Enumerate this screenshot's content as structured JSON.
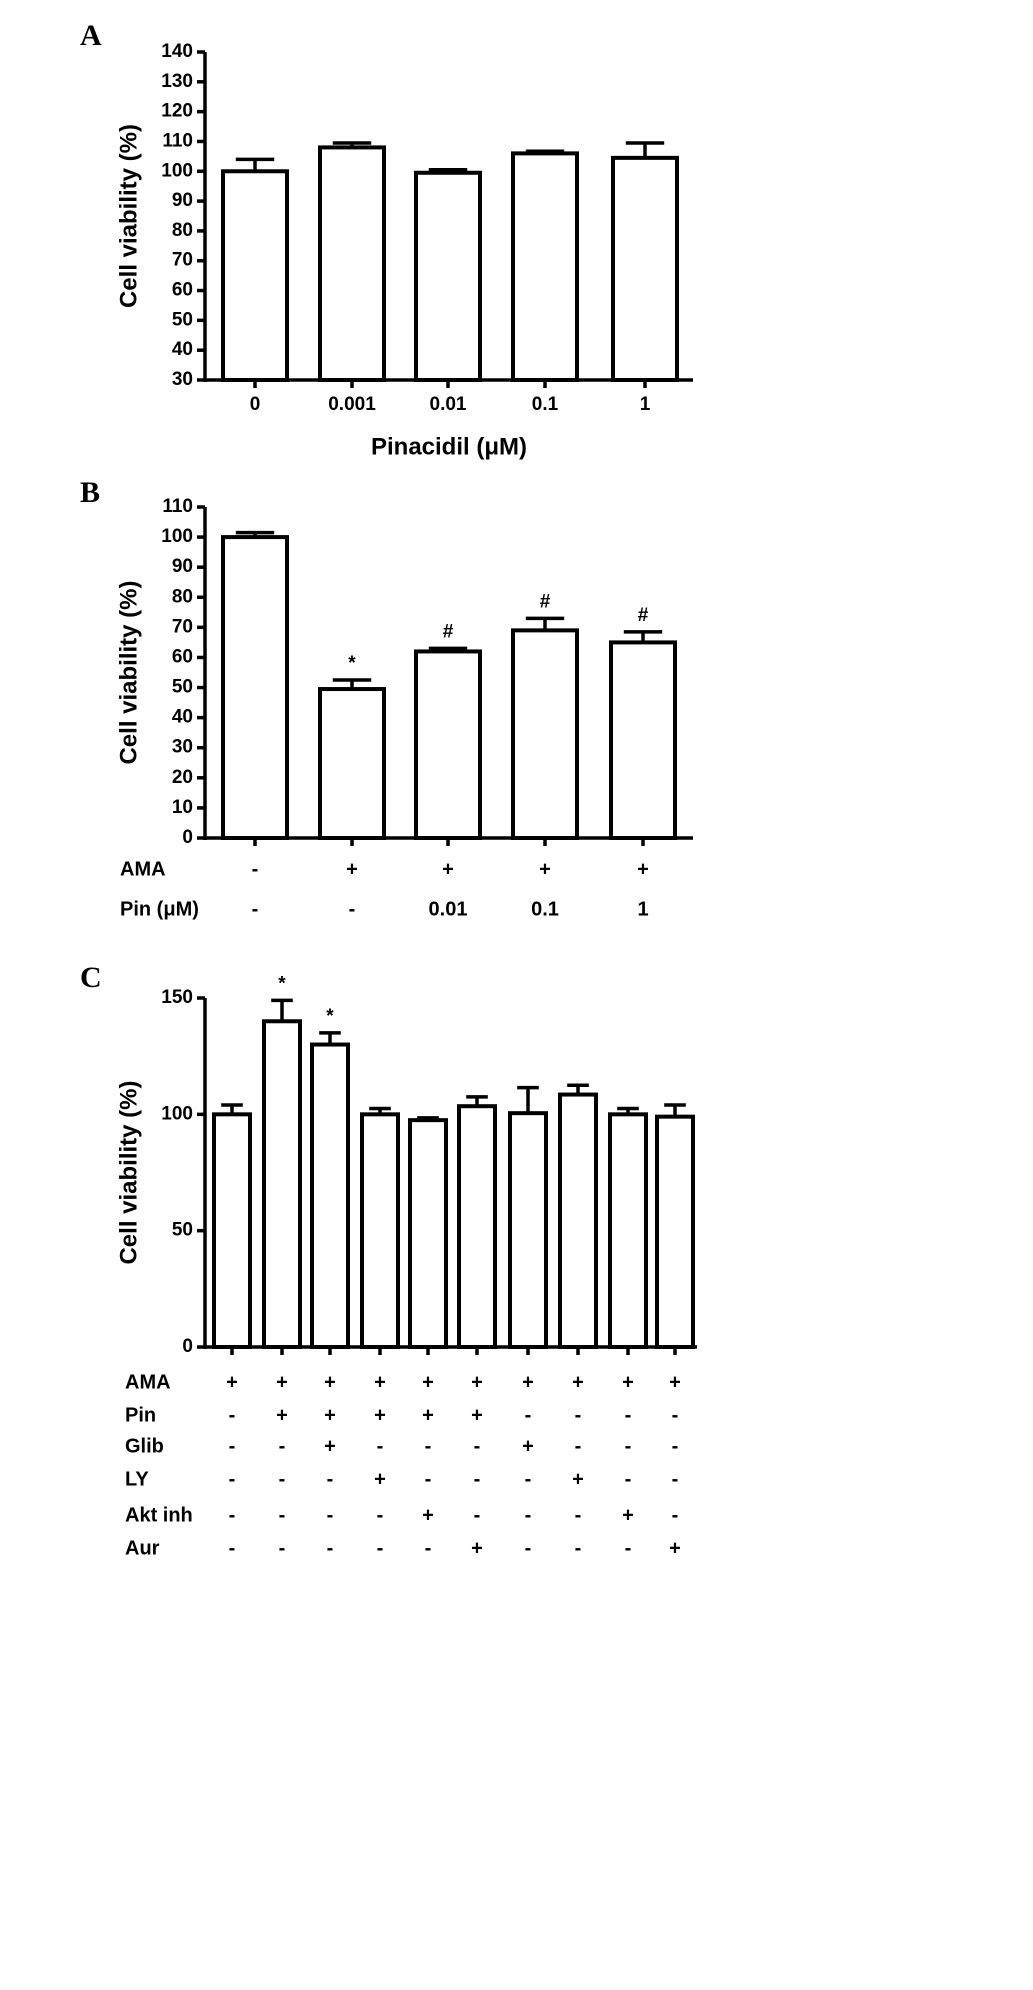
{
  "chart_data": [
    {
      "type": "bar",
      "panel": "A",
      "ylabel": "Cell viability (%)",
      "xlabel": "Pinacidil (μM)",
      "categories": [
        "0",
        "0.001",
        "0.01",
        "0.1",
        "1"
      ],
      "values": [
        100,
        108,
        99.5,
        106,
        104.5
      ],
      "errors": [
        4,
        1.5,
        1,
        0.7,
        5
      ],
      "ylim": [
        30,
        140
      ],
      "yticks": [
        30,
        40,
        50,
        60,
        70,
        80,
        90,
        100,
        110,
        120,
        130,
        140
      ],
      "color": "#ffffff"
    },
    {
      "type": "bar",
      "panel": "B",
      "ylabel": "Cell viability (%)",
      "conditions": [
        {
          "label": "AMA",
          "values": [
            "-",
            "+",
            "+",
            "+",
            "+"
          ]
        },
        {
          "label": "Pin (μM)",
          "values": [
            "-",
            "-",
            "0.01",
            "0.1",
            "1"
          ]
        }
      ],
      "values": [
        100,
        49.5,
        62,
        69,
        65
      ],
      "errors": [
        1.5,
        3,
        1,
        4,
        3.5
      ],
      "annotations": [
        null,
        "*",
        "#",
        "#",
        "#"
      ],
      "ylim": [
        0,
        110
      ],
      "yticks": [
        0,
        10,
        20,
        30,
        40,
        50,
        60,
        70,
        80,
        90,
        100,
        110
      ],
      "color": "#ffffff"
    },
    {
      "type": "bar",
      "panel": "C",
      "ylabel": "Cell viability (%)",
      "conditions": [
        {
          "label": "AMA",
          "values": [
            "+",
            "+",
            "+",
            "+",
            "+",
            "+",
            "+",
            "+",
            "+",
            "+"
          ]
        },
        {
          "label": "Pin",
          "values": [
            "-",
            "+",
            "+",
            "+",
            "+",
            "+",
            "-",
            "-",
            "-",
            "-"
          ]
        },
        {
          "label": "Glib",
          "values": [
            "-",
            "-",
            "+",
            "-",
            "-",
            "-",
            "+",
            "-",
            "-",
            "-"
          ]
        },
        {
          "label": "LY",
          "values": [
            "-",
            "-",
            "-",
            "+",
            "-",
            "-",
            "-",
            "+",
            "-",
            "-"
          ]
        },
        {
          "label": "Akt inh",
          "values": [
            "-",
            "-",
            "-",
            "-",
            "+",
            "-",
            "-",
            "-",
            "+",
            "-"
          ]
        },
        {
          "label": "Aur",
          "values": [
            "-",
            "-",
            "-",
            "-",
            "-",
            "+",
            "-",
            "-",
            "-",
            "+"
          ]
        }
      ],
      "values": [
        100,
        140,
        130,
        100,
        97.5,
        103.5,
        100.5,
        108.5,
        100,
        99
      ],
      "errors": [
        4,
        9,
        5,
        2.5,
        1,
        4,
        11,
        4,
        2.5,
        5
      ],
      "annotations": [
        null,
        "*",
        "*",
        null,
        null,
        null,
        null,
        null,
        null,
        null
      ],
      "ylim": [
        0,
        150
      ],
      "yticks": [
        0,
        50,
        100,
        150
      ],
      "color": "#ffffff"
    }
  ]
}
